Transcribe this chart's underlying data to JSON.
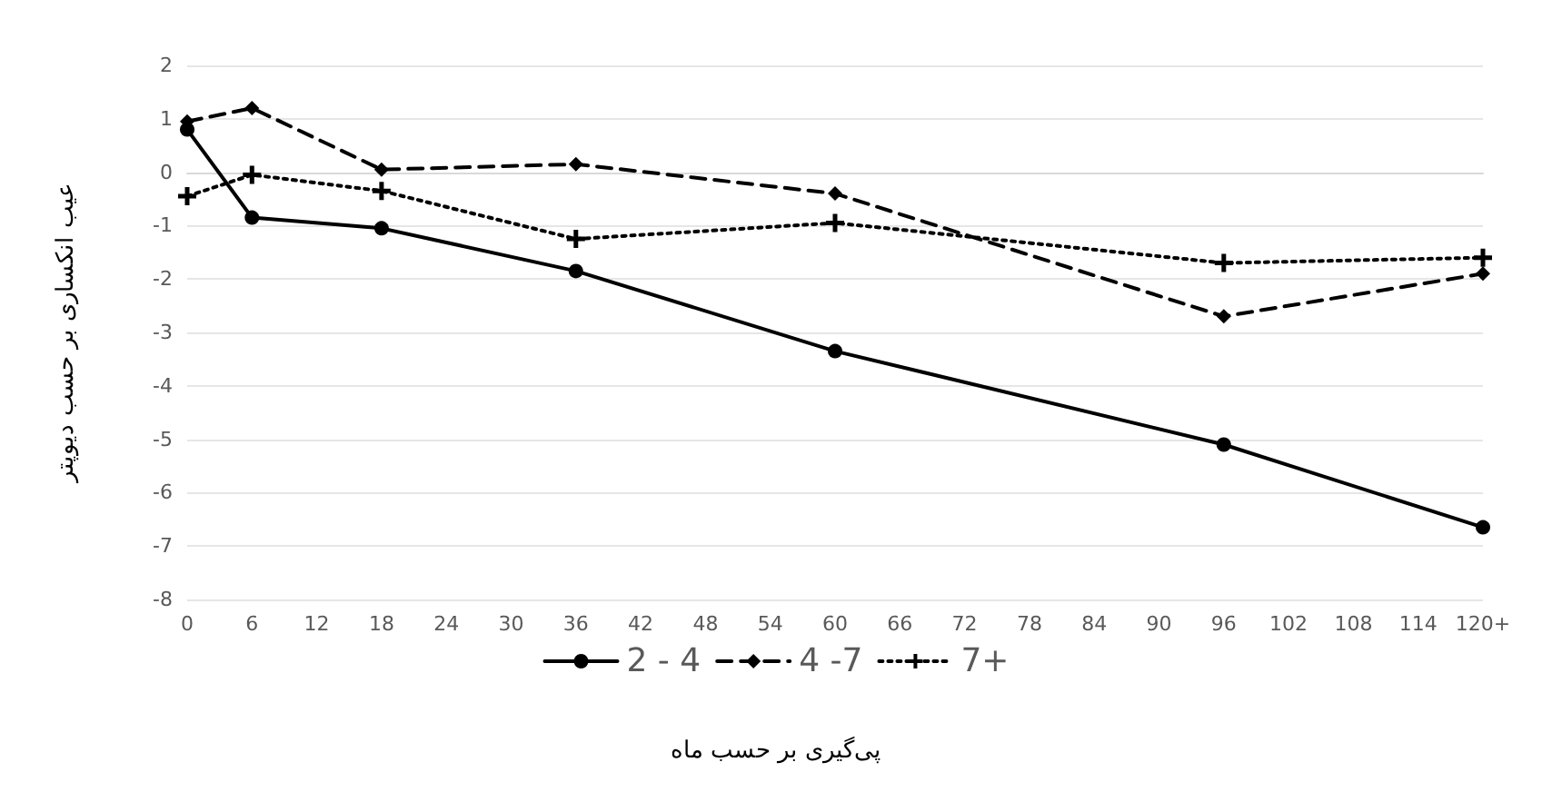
{
  "chart_data": {
    "type": "line",
    "xlabel": "پی‌گیری بر حسب ماه",
    "ylabel": "عیب انکساری بر حسب دیوپتر",
    "categories": [
      "0",
      "6",
      "12",
      "18",
      "24",
      "30",
      "36",
      "42",
      "48",
      "54",
      "60",
      "66",
      "72",
      "78",
      "84",
      "90",
      "96",
      "102",
      "108",
      "114",
      "120+"
    ],
    "series": [
      {
        "name": "2 - 4",
        "color": "#000000",
        "marker": "circle",
        "line_style": "solid",
        "values": [
          0.8,
          -0.85,
          null,
          -1.05,
          null,
          null,
          -1.85,
          null,
          null,
          null,
          -3.35,
          null,
          null,
          null,
          null,
          null,
          -5.1,
          null,
          null,
          null,
          -6.65
        ]
      },
      {
        "name": "4 -7",
        "color": "#000000",
        "marker": "diamond",
        "line_style": "dashed",
        "values": [
          0.95,
          1.2,
          null,
          0.05,
          null,
          null,
          0.15,
          null,
          null,
          null,
          -0.4,
          null,
          null,
          null,
          null,
          null,
          -2.7,
          null,
          null,
          null,
          -1.9
        ]
      },
      {
        "name": "7+",
        "color": "#000000",
        "marker": "cross",
        "line_style": "dotted",
        "values": [
          -0.45,
          -0.05,
          null,
          -0.35,
          null,
          null,
          -1.25,
          null,
          null,
          null,
          -0.95,
          null,
          null,
          null,
          null,
          null,
          -1.7,
          null,
          null,
          null,
          -1.6
        ]
      }
    ],
    "ylim": [
      -8,
      2
    ],
    "yticks": [
      -8,
      -7,
      -6,
      -5,
      -4,
      -3,
      -2,
      -1,
      0,
      1,
      2
    ],
    "grid": "y",
    "legend": "bottom"
  }
}
